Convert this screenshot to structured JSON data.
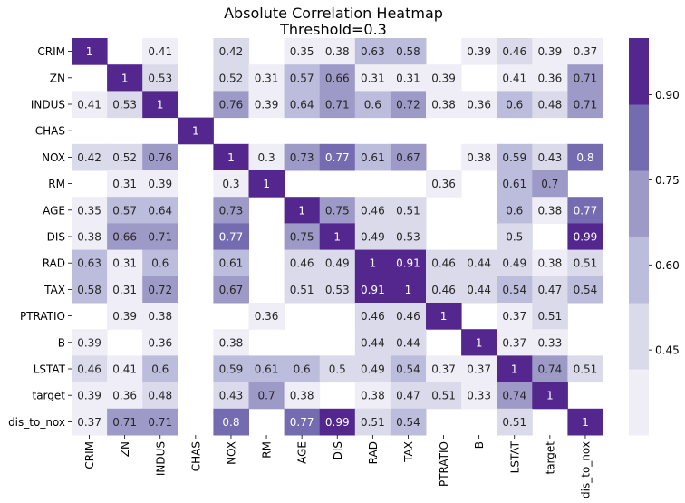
{
  "chart_data": {
    "type": "heatmap",
    "title": "Absolute Correlation Heatmap",
    "subtitle": "Threshold=0.3",
    "threshold": 0.3,
    "rows": [
      "CRIM",
      "ZN",
      "INDUS",
      "CHAS",
      "NOX",
      "RM",
      "AGE",
      "DIS",
      "RAD",
      "TAX",
      "PTRATIO",
      "B",
      "LSTAT",
      "target",
      "dis_to_nox"
    ],
    "cols": [
      "CRIM",
      "ZN",
      "INDUS",
      "CHAS",
      "NOX",
      "RM",
      "AGE",
      "DIS",
      "RAD",
      "TAX",
      "PTRATIO",
      "B",
      "LSTAT",
      "target",
      "dis_to_nox"
    ],
    "values": [
      [
        1,
        null,
        0.41,
        null,
        0.42,
        null,
        0.35,
        0.38,
        0.63,
        0.58,
        null,
        0.39,
        0.46,
        0.39,
        0.37
      ],
      [
        null,
        1,
        0.53,
        null,
        0.52,
        0.31,
        0.57,
        0.66,
        0.31,
        0.31,
        0.39,
        null,
        0.41,
        0.36,
        0.71
      ],
      [
        0.41,
        0.53,
        1,
        null,
        0.76,
        0.39,
        0.64,
        0.71,
        0.6,
        0.72,
        0.38,
        0.36,
        0.6,
        0.48,
        0.71
      ],
      [
        null,
        null,
        null,
        1,
        null,
        null,
        null,
        null,
        null,
        null,
        null,
        null,
        null,
        null,
        null
      ],
      [
        0.42,
        0.52,
        0.76,
        null,
        1,
        0.3,
        0.73,
        0.77,
        0.61,
        0.67,
        null,
        0.38,
        0.59,
        0.43,
        0.8
      ],
      [
        null,
        0.31,
        0.39,
        null,
        0.3,
        1,
        null,
        null,
        null,
        null,
        0.36,
        null,
        0.61,
        0.7,
        null
      ],
      [
        0.35,
        0.57,
        0.64,
        null,
        0.73,
        null,
        1,
        0.75,
        0.46,
        0.51,
        null,
        null,
        0.6,
        0.38,
        0.77
      ],
      [
        0.38,
        0.66,
        0.71,
        null,
        0.77,
        null,
        0.75,
        1,
        0.49,
        0.53,
        null,
        null,
        0.5,
        null,
        0.99
      ],
      [
        0.63,
        0.31,
        0.6,
        null,
        0.61,
        null,
        0.46,
        0.49,
        1,
        0.91,
        0.46,
        0.44,
        0.49,
        0.38,
        0.51
      ],
      [
        0.58,
        0.31,
        0.72,
        null,
        0.67,
        null,
        0.51,
        0.53,
        0.91,
        1,
        0.46,
        0.44,
        0.54,
        0.47,
        0.54
      ],
      [
        null,
        0.39,
        0.38,
        null,
        null,
        0.36,
        null,
        null,
        0.46,
        0.46,
        1,
        null,
        0.37,
        0.51,
        null
      ],
      [
        0.39,
        null,
        0.36,
        null,
        0.38,
        null,
        null,
        null,
        0.44,
        0.44,
        null,
        1,
        0.37,
        0.33,
        null
      ],
      [
        0.46,
        0.41,
        0.6,
        null,
        0.59,
        0.61,
        0.6,
        0.5,
        0.49,
        0.54,
        0.37,
        0.37,
        1,
        0.74,
        0.51
      ],
      [
        0.39,
        0.36,
        0.48,
        null,
        0.43,
        0.7,
        0.38,
        null,
        0.38,
        0.47,
        0.51,
        0.33,
        0.74,
        1,
        null
      ],
      [
        0.37,
        0.71,
        0.71,
        null,
        0.8,
        null,
        0.77,
        0.99,
        0.51,
        0.54,
        null,
        null,
        0.51,
        null,
        1
      ]
    ],
    "colorbar": {
      "ticks": [
        0.45,
        0.6,
        0.75,
        0.9
      ],
      "tick_labels": [
        "0.45",
        "0.60",
        "0.75",
        "0.90"
      ],
      "boundaries": [
        0.3,
        0.416667,
        0.533333,
        0.65,
        0.766667,
        0.883333,
        1.0
      ],
      "colors": [
        "#efedf5",
        "#dadaeb",
        "#bcbddc",
        "#9e9ac8",
        "#756bb1",
        "#54278f"
      ]
    },
    "grid": false,
    "legend": "colorbar-right"
  }
}
